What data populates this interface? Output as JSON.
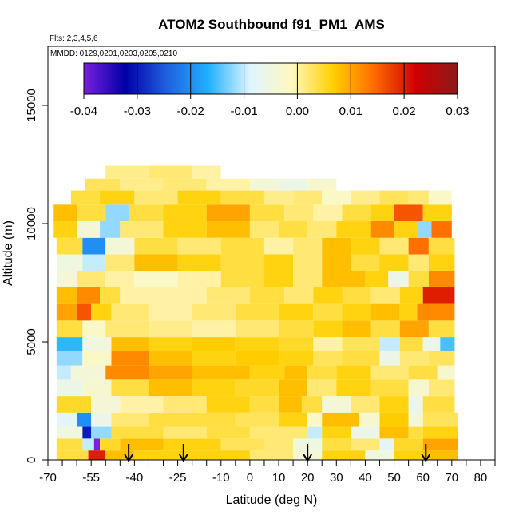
{
  "chart_data": {
    "type": "heatmap",
    "title": "ATOM2 Southbound f91_PM1_AMS",
    "flights_note": "Flts: 2,3,4,5,6",
    "dates_note": "MMDD: 0129,0201,0203,0205,0210",
    "xlabel": "Latitude (deg N)",
    "ylabel": "Altitude (m)",
    "xlim": [
      -70,
      85
    ],
    "ylim": [
      0,
      17500
    ],
    "x_ticks": [
      -70,
      -55,
      -40,
      -25,
      -10,
      0,
      10,
      20,
      30,
      40,
      50,
      60,
      70,
      80
    ],
    "x_minor_ticks": [
      -65,
      -60,
      -50,
      -45,
      -35,
      -30,
      -20,
      -15,
      -5,
      5,
      15,
      25,
      35,
      45,
      55,
      65,
      75,
      85
    ],
    "x_tick_labels": [
      "-70",
      "-55",
      "-40",
      "-25",
      "-10",
      "0",
      "10",
      "20",
      "30",
      "40",
      "50",
      "60",
      "70",
      "80"
    ],
    "y_ticks": [
      0,
      5000,
      10000,
      15000
    ],
    "y_tick_labels": [
      "0",
      "5000",
      "10000",
      "15000"
    ],
    "colorbar": {
      "min": -0.04,
      "max": 0.03,
      "ticks": [
        -0.04,
        -0.03,
        -0.02,
        -0.01,
        0.0,
        0.01,
        0.02,
        0.03
      ],
      "tick_labels": [
        "-0.04",
        "-0.03",
        "-0.02",
        "-0.01",
        "0.00",
        "0.01",
        "0.02",
        "0.03"
      ],
      "color_stops": [
        "#7a1fe0",
        "#0000a8",
        "#2060e0",
        "#20b0ff",
        "#dff5ff",
        "#fff8c0",
        "#ffd000",
        "#ff6a00",
        "#d00000",
        "#8b1a1a"
      ]
    },
    "arrows_latitude": [
      -42,
      -23,
      20,
      61
    ],
    "layers": [
      {
        "alt": [
          0,
          400
        ],
        "x": [
          -67,
          72
        ],
        "segments": [
          [
            -67,
            0.004
          ],
          [
            -56,
            0.02
          ],
          [
            -50,
            0.008
          ],
          [
            -40,
            0.006
          ],
          [
            -20,
            0.006
          ],
          [
            0,
            0.002
          ],
          [
            15,
            -0.004
          ],
          [
            25,
            0.006
          ],
          [
            40,
            -0.005
          ],
          [
            50,
            0.006
          ],
          [
            60,
            0.008
          ]
        ]
      },
      {
        "alt": [
          400,
          900
        ],
        "x": [
          -67,
          72
        ],
        "segments": [
          [
            -67,
            0.004
          ],
          [
            -58,
            -0.01
          ],
          [
            -54,
            -0.04
          ],
          [
            -52,
            0.005
          ],
          [
            -45,
            0.008
          ],
          [
            -30,
            0.006
          ],
          [
            -10,
            0.003
          ],
          [
            5,
            0.002
          ],
          [
            15,
            -0.005
          ],
          [
            25,
            0.004
          ],
          [
            35,
            0.002
          ],
          [
            45,
            -0.008
          ],
          [
            50,
            0.005
          ],
          [
            60,
            0.01
          ]
        ]
      },
      {
        "alt": [
          900,
          1400
        ],
        "x": [
          -67,
          72
        ],
        "segments": [
          [
            -67,
            -0.005
          ],
          [
            -58,
            -0.03
          ],
          [
            -55,
            -0.012
          ],
          [
            -48,
            0.004
          ],
          [
            -30,
            0.002
          ],
          [
            -15,
            0.004
          ],
          [
            0,
            0.002
          ],
          [
            10,
            0.002
          ],
          [
            20,
            -0.01
          ],
          [
            25,
            0.006
          ],
          [
            35,
            -0.006
          ],
          [
            45,
            0.008
          ],
          [
            55,
            0.004
          ],
          [
            60,
            0.006
          ]
        ]
      },
      {
        "alt": [
          1400,
          2000
        ],
        "x": [
          -67,
          72
        ],
        "segments": [
          [
            -67,
            -0.008
          ],
          [
            -60,
            -0.02
          ],
          [
            -55,
            -0.006
          ],
          [
            -48,
            0.002
          ],
          [
            -35,
            0.004
          ],
          [
            -20,
            0.004
          ],
          [
            -5,
            0.003
          ],
          [
            10,
            0.006
          ],
          [
            20,
            -0.002
          ],
          [
            25,
            0.008
          ],
          [
            38,
            -0.003
          ],
          [
            45,
            0.007
          ],
          [
            55,
            -0.004
          ],
          [
            60,
            0.003
          ]
        ]
      },
      {
        "alt": [
          2000,
          2700
        ],
        "x": [
          -67,
          71
        ],
        "segments": [
          [
            -67,
            0.005
          ],
          [
            -55,
            -0.004
          ],
          [
            -45,
            0.0
          ],
          [
            -30,
            0.002
          ],
          [
            -15,
            0.006
          ],
          [
            0,
            0.004
          ],
          [
            10,
            0.008
          ],
          [
            18,
            0.004
          ],
          [
            25,
            -0.004
          ],
          [
            35,
            0.002
          ],
          [
            45,
            0.006
          ],
          [
            55,
            -0.006
          ],
          [
            60,
            0.004
          ]
        ]
      },
      {
        "alt": [
          2700,
          3400
        ],
        "x": [
          -67,
          71
        ],
        "segments": [
          [
            -67,
            -0.006
          ],
          [
            -58,
            -0.003
          ],
          [
            -48,
            0.004
          ],
          [
            -35,
            0.008
          ],
          [
            -20,
            0.006
          ],
          [
            -5,
            0.005
          ],
          [
            10,
            0.008
          ],
          [
            20,
            0.002
          ],
          [
            30,
            0.006
          ],
          [
            42,
            0.004
          ],
          [
            55,
            -0.003
          ],
          [
            62,
            0.002
          ]
        ]
      },
      {
        "alt": [
          3400,
          4000
        ],
        "x": [
          -67,
          71
        ],
        "segments": [
          [
            -67,
            -0.01
          ],
          [
            -62,
            -0.004
          ],
          [
            -50,
            0.012
          ],
          [
            -35,
            0.01
          ],
          [
            -20,
            0.008
          ],
          [
            0,
            0.006
          ],
          [
            12,
            0.008
          ],
          [
            20,
            0.004
          ],
          [
            30,
            0.006
          ],
          [
            42,
            0.002
          ],
          [
            55,
            0.004
          ],
          [
            65,
            -0.003
          ]
        ]
      },
      {
        "alt": [
          4000,
          4600
        ],
        "x": [
          -67,
          71
        ],
        "segments": [
          [
            -67,
            -0.012
          ],
          [
            -58,
            -0.002
          ],
          [
            -48,
            0.012
          ],
          [
            -35,
            0.008
          ],
          [
            -20,
            0.006
          ],
          [
            -5,
            0.007
          ],
          [
            10,
            0.006
          ],
          [
            22,
            0.003
          ],
          [
            32,
            0.004
          ],
          [
            45,
            -0.006
          ],
          [
            52,
            0.002
          ],
          [
            62,
            0.003
          ]
        ]
      },
      {
        "alt": [
          4600,
          5200
        ],
        "x": [
          -67,
          71
        ],
        "segments": [
          [
            -67,
            -0.016
          ],
          [
            -58,
            -0.005
          ],
          [
            -48,
            0.008
          ],
          [
            -35,
            0.006
          ],
          [
            -20,
            0.007
          ],
          [
            -5,
            0.006
          ],
          [
            10,
            0.005
          ],
          [
            22,
            0.0
          ],
          [
            32,
            0.003
          ],
          [
            45,
            -0.01
          ],
          [
            52,
            0.004
          ],
          [
            60,
            -0.006
          ],
          [
            66,
            -0.015
          ]
        ]
      },
      {
        "alt": [
          5200,
          5900
        ],
        "x": [
          -67,
          71
        ],
        "segments": [
          [
            -67,
            0.004
          ],
          [
            -58,
            -0.002
          ],
          [
            -50,
            0.002
          ],
          [
            -35,
            0.001
          ],
          [
            -20,
            0.0
          ],
          [
            -5,
            0.002
          ],
          [
            10,
            0.004
          ],
          [
            22,
            0.006
          ],
          [
            32,
            0.008
          ],
          [
            42,
            0.004
          ],
          [
            52,
            0.01
          ],
          [
            62,
            0.004
          ]
        ]
      },
      {
        "alt": [
          5900,
          6600
        ],
        "x": [
          -67,
          71
        ],
        "segments": [
          [
            -67,
            0.01
          ],
          [
            -60,
            0.016
          ],
          [
            -55,
            0.006
          ],
          [
            -48,
            0.002
          ],
          [
            -35,
            0.0
          ],
          [
            -20,
            0.002
          ],
          [
            -5,
            0.004
          ],
          [
            10,
            0.006
          ],
          [
            22,
            0.004
          ],
          [
            32,
            0.006
          ],
          [
            42,
            0.008
          ],
          [
            52,
            0.006
          ],
          [
            58,
            0.012
          ]
        ]
      },
      {
        "alt": [
          6600,
          7300
        ],
        "x": [
          -67,
          71
        ],
        "segments": [
          [
            -67,
            0.008
          ],
          [
            -60,
            0.012
          ],
          [
            -52,
            0.004
          ],
          [
            -45,
            0.0
          ],
          [
            -30,
            0.0
          ],
          [
            -15,
            0.002
          ],
          [
            0,
            0.004
          ],
          [
            12,
            0.002
          ],
          [
            22,
            0.006
          ],
          [
            32,
            0.004
          ],
          [
            42,
            0.002
          ],
          [
            52,
            0.006
          ],
          [
            60,
            0.02
          ]
        ]
      },
      {
        "alt": [
          7300,
          8000
        ],
        "x": [
          -67,
          71
        ],
        "segments": [
          [
            -67,
            -0.004
          ],
          [
            -60,
            0.002
          ],
          [
            -50,
            0.0
          ],
          [
            -40,
            -0.002
          ],
          [
            -25,
            0.0
          ],
          [
            -10,
            0.004
          ],
          [
            5,
            0.006
          ],
          [
            15,
            0.002
          ],
          [
            25,
            0.008
          ],
          [
            40,
            0.006
          ],
          [
            48,
            -0.006
          ],
          [
            55,
            0.004
          ],
          [
            62,
            0.012
          ]
        ]
      },
      {
        "alt": [
          8000,
          8700
        ],
        "x": [
          -67,
          71
        ],
        "segments": [
          [
            -67,
            -0.005
          ],
          [
            -58,
            -0.01
          ],
          [
            -50,
            0.002
          ],
          [
            -40,
            0.008
          ],
          [
            -25,
            0.006
          ],
          [
            -10,
            0.004
          ],
          [
            5,
            0.006
          ],
          [
            15,
            0.002
          ],
          [
            25,
            0.008
          ],
          [
            35,
            0.004
          ],
          [
            45,
            0.006
          ],
          [
            55,
            0.002
          ],
          [
            62,
            0.006
          ]
        ]
      },
      {
        "alt": [
          8700,
          9400
        ],
        "x": [
          -67,
          71
        ],
        "segments": [
          [
            -67,
            0.004
          ],
          [
            -58,
            -0.02
          ],
          [
            -50,
            -0.004
          ],
          [
            -40,
            0.004
          ],
          [
            -25,
            0.002
          ],
          [
            -10,
            0.004
          ],
          [
            5,
            0.0
          ],
          [
            15,
            0.002
          ],
          [
            25,
            0.008
          ],
          [
            35,
            0.006
          ],
          [
            45,
            0.002
          ],
          [
            55,
            0.014
          ],
          [
            62,
            0.004
          ]
        ]
      },
      {
        "alt": [
          9400,
          10100
        ],
        "x": [
          -68,
          70
        ],
        "segments": [
          [
            -68,
            0.006
          ],
          [
            -60,
            -0.004
          ],
          [
            -52,
            -0.012
          ],
          [
            -45,
            0.002
          ],
          [
            -30,
            0.006
          ],
          [
            -15,
            0.008
          ],
          [
            0,
            0.002
          ],
          [
            10,
            0.004
          ],
          [
            20,
            0.002
          ],
          [
            30,
            0.006
          ],
          [
            42,
            0.012
          ],
          [
            50,
            0.006
          ],
          [
            58,
            -0.012
          ],
          [
            63,
            0.014
          ]
        ]
      },
      {
        "alt": [
          10100,
          10800
        ],
        "x": [
          -68,
          70
        ],
        "segments": [
          [
            -68,
            0.008
          ],
          [
            -60,
            0.004
          ],
          [
            -50,
            -0.012
          ],
          [
            -42,
            0.004
          ],
          [
            -30,
            0.006
          ],
          [
            -15,
            0.01
          ],
          [
            0,
            0.004
          ],
          [
            12,
            0.002
          ],
          [
            22,
            0.0
          ],
          [
            32,
            0.004
          ],
          [
            42,
            0.006
          ],
          [
            50,
            0.016
          ],
          [
            60,
            0.006
          ]
        ]
      },
      {
        "alt": [
          10800,
          11400
        ],
        "x": [
          -62,
          70
        ],
        "segments": [
          [
            -62,
            0.004
          ],
          [
            -52,
            0.006
          ],
          [
            -40,
            0.002
          ],
          [
            -25,
            0.006
          ],
          [
            -10,
            0.004
          ],
          [
            5,
            0.001
          ],
          [
            15,
            0.002
          ],
          [
            25,
            -0.002
          ],
          [
            35,
            0.001
          ],
          [
            45,
            0.003
          ],
          [
            55,
            0.002
          ],
          [
            62,
            -0.002
          ]
        ]
      },
      {
        "alt": [
          11400,
          11900
        ],
        "x": [
          -57,
          30
        ],
        "segments": [
          [
            -57,
            0.003
          ],
          [
            -45,
            0.001
          ],
          [
            -30,
            0.002
          ],
          [
            -15,
            0.0
          ],
          [
            0,
            -0.004
          ],
          [
            10,
            -0.006
          ],
          [
            20,
            -0.003
          ]
        ]
      },
      {
        "alt": [
          11900,
          12450
        ],
        "x": [
          -50,
          -10
        ],
        "segments": [
          [
            -50,
            0.001
          ],
          [
            -35,
            0.002
          ],
          [
            -20,
            0.0
          ]
        ]
      }
    ]
  }
}
